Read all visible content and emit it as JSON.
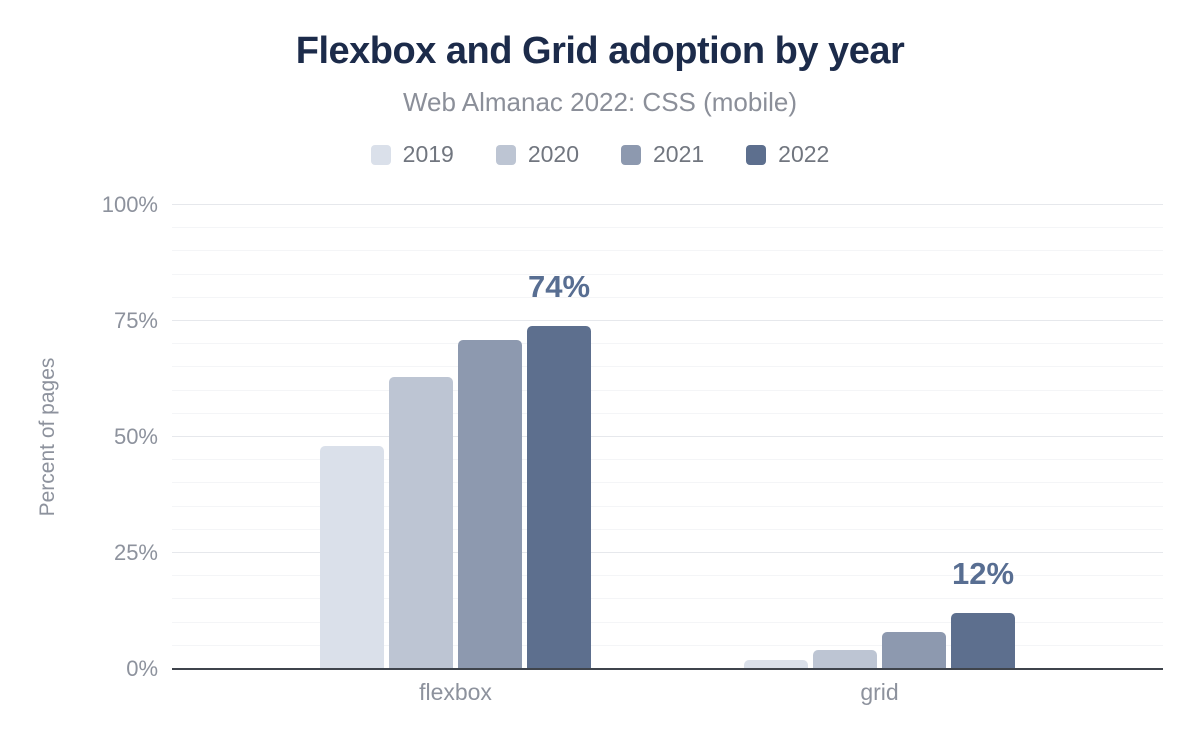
{
  "header": {
    "title": "Flexbox and Grid adoption by year",
    "subtitle": "Web Almanac 2022: CSS (mobile)"
  },
  "chart_data": {
    "type": "bar",
    "title": "Flexbox and Grid adoption by year",
    "subtitle": "Web Almanac 2022: CSS (mobile)",
    "categories": [
      "flexbox",
      "grid"
    ],
    "series": [
      {
        "name": "2019",
        "color": "#dae0ea",
        "values": [
          48,
          2
        ]
      },
      {
        "name": "2020",
        "color": "#bdc5d3",
        "values": [
          63,
          4
        ]
      },
      {
        "name": "2021",
        "color": "#8d99af",
        "values": [
          71,
          8
        ]
      },
      {
        "name": "2022",
        "color": "#5d6f8e",
        "values": [
          74,
          12
        ]
      }
    ],
    "annotations": [
      {
        "category": "flexbox",
        "series": "2022",
        "text": "74%"
      },
      {
        "category": "grid",
        "series": "2022",
        "text": "12%"
      }
    ],
    "xlabel": "",
    "ylabel": "Percent of pages",
    "ylim": [
      0,
      100
    ],
    "yticks": [
      {
        "value": 0,
        "label": "0%"
      },
      {
        "value": 25,
        "label": "25%"
      },
      {
        "value": 50,
        "label": "50%"
      },
      {
        "value": 75,
        "label": "75%"
      },
      {
        "value": 100,
        "label": "100%"
      }
    ],
    "grid": {
      "lines": "horizontal",
      "minor_step": 5,
      "major_step": 25
    },
    "legend_position": "top"
  },
  "theme": {
    "title_color": "#1c2b4a",
    "subtitle_color": "#8b8f99",
    "axis_text_color": "#8d929d",
    "legend_text_color": "#71767f",
    "data_label_color": "#586e92",
    "axis_line_color": "#3f444c",
    "grid_major_color": "#e6e8ec",
    "grid_minor_color": "#f4f5f7",
    "background": "#ffffff"
  }
}
